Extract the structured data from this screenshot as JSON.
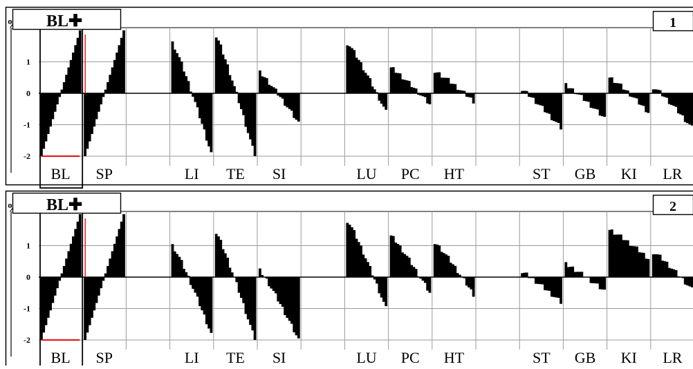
{
  "chart_data": [
    {
      "type": "bar",
      "title": "BL✚",
      "panel_number": "1",
      "y_unit_label": "%",
      "ylim": [
        -2,
        2
      ],
      "y_ticks": [
        "1",
        "0",
        "-1",
        "-2"
      ],
      "categories": [
        "BL",
        "SP",
        "",
        "LI",
        "TE",
        "SI",
        "",
        "LU",
        "PC",
        "HT",
        "",
        "ST",
        "GB",
        "KI",
        "LR"
      ],
      "highlight_category": "BL",
      "grid": true,
      "segments": [
        {
          "label": "BL",
          "start": -2.0,
          "end": 2.0,
          "highlight": true
        },
        {
          "label": "SP",
          "start": -2.0,
          "end": 2.0
        },
        {
          "label": "",
          "start": 0,
          "end": 0
        },
        {
          "label": "LI",
          "start": 1.6,
          "end": -1.9
        },
        {
          "label": "TE",
          "start": 1.8,
          "end": -2.0
        },
        {
          "label": "SI",
          "start": 0.65,
          "end": -0.95
        },
        {
          "label": "",
          "start": 0,
          "end": 0
        },
        {
          "label": "LU",
          "start": 1.6,
          "end": -0.6
        },
        {
          "label": "PC",
          "start": 0.8,
          "end": -0.35
        },
        {
          "label": "HT",
          "start": 0.7,
          "end": -0.25
        },
        {
          "label": "",
          "start": 0,
          "end": 0
        },
        {
          "label": "ST",
          "start": 0.1,
          "end": -1.1
        },
        {
          "label": "GB",
          "start": 0.25,
          "end": -0.8
        },
        {
          "label": "KI",
          "start": 0.5,
          "end": -0.6
        },
        {
          "label": "LR",
          "start": 0.2,
          "end": -1.1
        }
      ]
    },
    {
      "type": "bar",
      "title": "BL✚",
      "panel_number": "2",
      "y_unit_label": "%",
      "ylim": [
        -2,
        2
      ],
      "y_ticks": [
        "1",
        "0",
        "-1",
        "-2"
      ],
      "categories": [
        "BL",
        "SP",
        "",
        "LI",
        "TE",
        "SI",
        "",
        "LU",
        "PC",
        "HT",
        "",
        "ST",
        "GB",
        "KI",
        "LR"
      ],
      "highlight_category": "BL",
      "grid": true,
      "segments": [
        {
          "label": "BL",
          "start": -2.0,
          "end": 2.0,
          "highlight": true
        },
        {
          "label": "SP",
          "start": -2.0,
          "end": 2.0
        },
        {
          "label": "",
          "start": 0,
          "end": 0
        },
        {
          "label": "LI",
          "start": 1.0,
          "end": -1.8
        },
        {
          "label": "TE",
          "start": 1.4,
          "end": -2.0
        },
        {
          "label": "SI",
          "start": 0.2,
          "end": -2.0
        },
        {
          "label": "",
          "start": 0,
          "end": 0
        },
        {
          "label": "LU",
          "start": 1.8,
          "end": -1.0
        },
        {
          "label": "PC",
          "start": 1.3,
          "end": -0.5
        },
        {
          "label": "HT",
          "start": 1.1,
          "end": -0.55
        },
        {
          "label": "",
          "start": 0,
          "end": 0
        },
        {
          "label": "ST",
          "start": 0.15,
          "end": -0.8
        },
        {
          "label": "GB",
          "start": 0.4,
          "end": -0.45
        },
        {
          "label": "KI",
          "start": 1.5,
          "end": 0.6
        },
        {
          "label": "LR",
          "start": 0.8,
          "end": -0.4
        }
      ]
    }
  ]
}
